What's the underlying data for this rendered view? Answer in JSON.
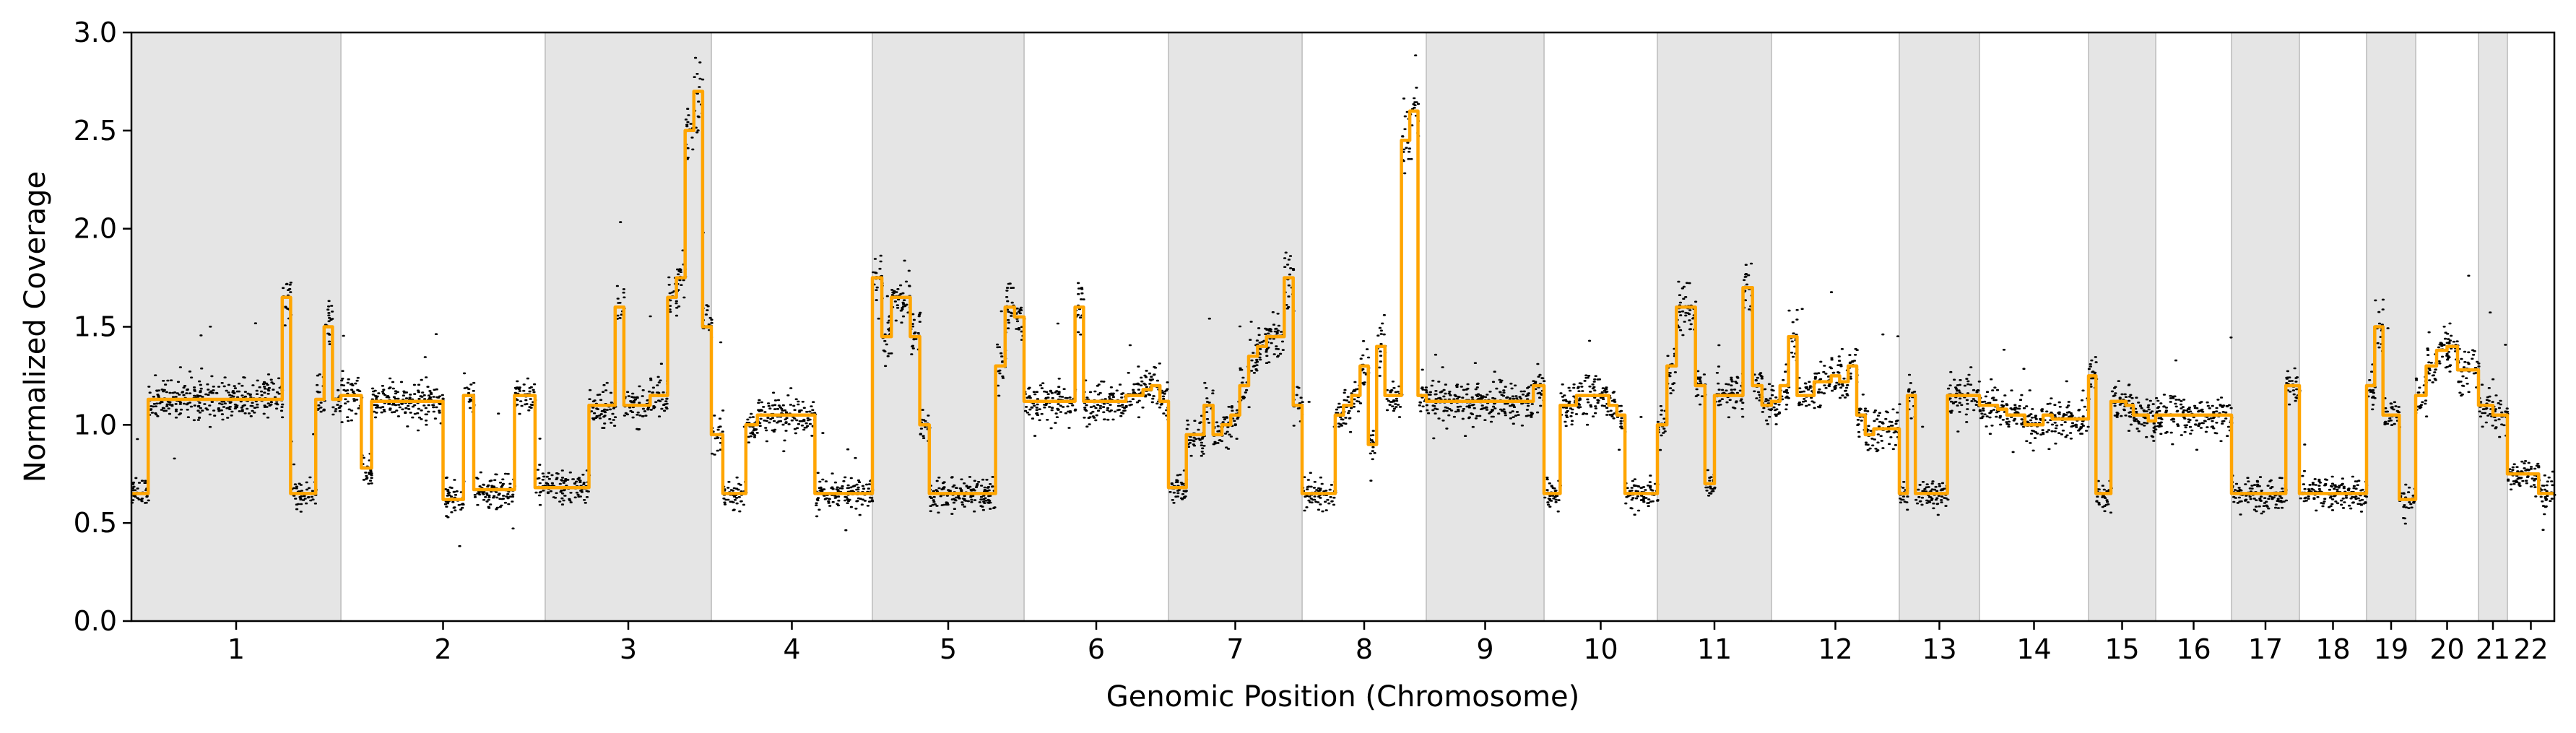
{
  "chart_data": {
    "type": "scatter",
    "xlabel": "Genomic Position (Chromosome)",
    "ylabel": "Normalized Coverage",
    "ylim": [
      0.0,
      3.0
    ],
    "yticks": [
      "0.0",
      "0.5",
      "1.0",
      "1.5",
      "2.0",
      "2.5",
      "3.0"
    ],
    "grid": false,
    "legend": "none",
    "colors": {
      "points": "#000000",
      "segments": "#FFA500",
      "band": "#e5e5e5",
      "band_edge": "#c8c8c8"
    },
    "chromosomes": [
      {
        "label": "1",
        "shaded": true
      },
      {
        "label": "2",
        "shaded": false
      },
      {
        "label": "3",
        "shaded": true
      },
      {
        "label": "4",
        "shaded": false
      },
      {
        "label": "5",
        "shaded": true
      },
      {
        "label": "6",
        "shaded": false
      },
      {
        "label": "7",
        "shaded": true
      },
      {
        "label": "8",
        "shaded": false
      },
      {
        "label": "9",
        "shaded": true
      },
      {
        "label": "10",
        "shaded": false
      },
      {
        "label": "11",
        "shaded": true
      },
      {
        "label": "12",
        "shaded": false
      },
      {
        "label": "13",
        "shaded": true
      },
      {
        "label": "14",
        "shaded": false
      },
      {
        "label": "15",
        "shaded": true
      },
      {
        "label": "16",
        "shaded": false
      },
      {
        "label": "17",
        "shaded": true
      },
      {
        "label": "18",
        "shaded": false
      },
      {
        "label": "19",
        "shaded": true
      },
      {
        "label": "20",
        "shaded": false
      },
      {
        "label": "21",
        "shaded": true
      },
      {
        "label": "22",
        "shaded": false
      }
    ],
    "segments": [
      {
        "chrom": "1",
        "values": [
          0.65,
          0.65,
          1.13,
          1.13,
          1.13,
          1.13,
          1.13,
          1.13,
          1.13,
          1.13,
          1.13,
          1.13,
          1.13,
          1.13,
          1.13,
          1.13,
          1.13,
          1.13,
          1.65,
          0.65,
          0.65,
          0.65,
          1.13,
          1.5,
          1.13
        ]
      },
      {
        "chrom": "2",
        "values": [
          1.15,
          1.15,
          0.78,
          1.12,
          1.12,
          1.12,
          1.12,
          1.12,
          1.12,
          1.12,
          0.62,
          0.62,
          1.15,
          0.67,
          0.67,
          0.67,
          0.67,
          1.15,
          1.15,
          0.68
        ]
      },
      {
        "chrom": "3",
        "values": [
          0.68,
          0.68,
          0.68,
          0.68,
          0.68,
          1.1,
          1.1,
          1.1,
          1.6,
          1.1,
          1.1,
          1.1,
          1.15,
          1.15,
          1.65,
          1.75,
          2.5,
          2.7,
          1.5
        ]
      },
      {
        "chrom": "4",
        "values": [
          0.95,
          0.65,
          0.65,
          1.0,
          1.05,
          1.05,
          1.05,
          1.05,
          1.05,
          0.65,
          0.65,
          0.65,
          0.65,
          0.65
        ]
      },
      {
        "chrom": "5",
        "values": [
          1.75,
          1.45,
          1.65,
          1.65,
          1.45,
          1.0,
          0.65,
          0.65,
          0.65,
          0.65,
          0.65,
          0.65,
          0.65,
          1.3,
          1.6,
          1.55
        ]
      },
      {
        "chrom": "6",
        "values": [
          1.12,
          1.12,
          1.12,
          1.12,
          1.12,
          1.12,
          1.6,
          1.12,
          1.12,
          1.12,
          1.12,
          1.12,
          1.15,
          1.15,
          1.18,
          1.2,
          1.12
        ]
      },
      {
        "chrom": "7",
        "values": [
          0.68,
          0.68,
          0.95,
          0.95,
          1.1,
          0.95,
          1.0,
          1.05,
          1.2,
          1.35,
          1.4,
          1.45,
          1.45,
          1.75,
          1.1
        ]
      },
      {
        "chrom": "8",
        "values": [
          0.65,
          0.65,
          0.65,
          0.65,
          1.05,
          1.1,
          1.15,
          1.3,
          0.9,
          1.4,
          1.15,
          1.15,
          2.45,
          2.6,
          1.15
        ]
      },
      {
        "chrom": "9",
        "values": [
          1.12,
          1.12,
          1.12,
          1.12,
          1.12,
          1.12,
          1.12,
          1.12,
          1.12,
          1.12,
          1.2
        ]
      },
      {
        "chrom": "10",
        "values": [
          0.65,
          0.65,
          1.1,
          1.1,
          1.15,
          1.15,
          1.15,
          1.15,
          1.1,
          1.05,
          0.65,
          0.65,
          0.65,
          0.65
        ]
      },
      {
        "chrom": "11",
        "values": [
          1.0,
          1.3,
          1.6,
          1.6,
          1.2,
          0.7,
          1.15,
          1.15,
          1.15,
          1.7,
          1.2,
          1.1
        ]
      },
      {
        "chrom": "12",
        "values": [
          1.12,
          1.2,
          1.45,
          1.15,
          1.15,
          1.22,
          1.22,
          1.25,
          1.22,
          1.3,
          1.05,
          0.95,
          0.98,
          0.98,
          0.98
        ]
      },
      {
        "chrom": "13",
        "values": [
          0.65,
          1.15,
          0.65,
          0.65,
          0.65,
          0.65,
          1.15,
          1.15,
          1.15,
          1.15
        ]
      },
      {
        "chrom": "14",
        "values": [
          1.1,
          1.1,
          1.08,
          1.05,
          1.05,
          1.0,
          1.0,
          1.05,
          1.03,
          1.03,
          1.03,
          1.03
        ]
      },
      {
        "chrom": "15",
        "values": [
          1.25,
          0.65,
          0.65,
          1.12,
          1.12,
          1.1,
          1.05,
          1.05,
          1.02
        ]
      },
      {
        "chrom": "16",
        "values": [
          1.05,
          1.05,
          1.05,
          1.05,
          1.05,
          1.05
        ]
      },
      {
        "chrom": "17",
        "values": [
          0.65,
          0.65,
          0.65,
          0.65,
          0.65,
          0.65,
          0.65,
          0.65,
          1.2,
          1.2
        ]
      },
      {
        "chrom": "18",
        "values": [
          0.65,
          0.65,
          0.65,
          0.65,
          0.65,
          0.65
        ]
      },
      {
        "chrom": "19",
        "values": [
          1.2,
          1.5,
          1.05,
          1.05,
          0.62,
          0.62
        ]
      },
      {
        "chrom": "20",
        "values": [
          1.15,
          1.3,
          1.38,
          1.4,
          1.28,
          1.28
        ]
      },
      {
        "chrom": "21",
        "values": [
          1.1,
          1.05
        ]
      },
      {
        "chrom": "22",
        "values": [
          0.75,
          0.75,
          0.65
        ]
      }
    ]
  }
}
